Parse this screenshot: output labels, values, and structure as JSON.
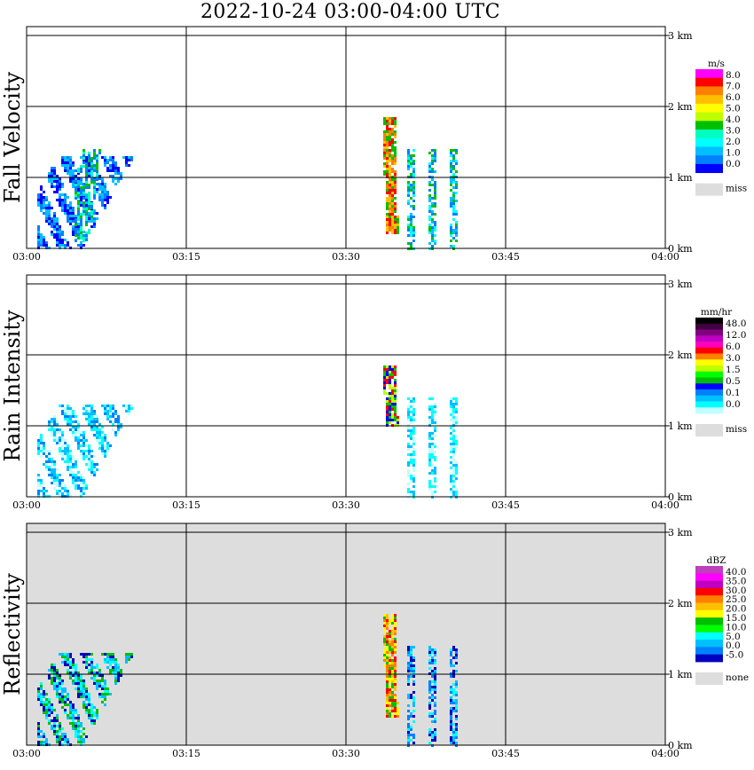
{
  "title": "2022-10-24   03:00-04:00 UTC",
  "x_ticks": [
    "03:00",
    "03:15",
    "03:30",
    "03:45",
    "04:00"
  ],
  "y_ticks": [
    "0 km",
    "1 km",
    "2 km",
    "3 km"
  ],
  "chart_data": [
    {
      "type": "heatmap",
      "ylabel": "Fall Velocity",
      "unit": "m/s",
      "xlim": [
        "03:00",
        "04:00"
      ],
      "ylim_km": [
        0,
        3.0
      ],
      "background": "#ffffff",
      "legend": {
        "colors": [
          "#ff00ff",
          "#ff0000",
          "#ff7f00",
          "#ffbf00",
          "#ffff00",
          "#bfff00",
          "#00bf00",
          "#00ffbf",
          "#00ffff",
          "#00bfff",
          "#0080ff",
          "#0000ff"
        ],
        "labels": [
          "8.0",
          "7.0",
          "6.0",
          "5.0",
          "4.0",
          "3.0",
          "2.0",
          "1.0",
          "0.0"
        ],
        "miss_label": "miss",
        "miss_color": "#dddddd"
      },
      "echoes": [
        {
          "t0": 1.0,
          "t1": 10.0,
          "h0": 0.0,
          "h1": 1.3,
          "value": "1.0-2.0"
        },
        {
          "t0": 4.5,
          "t1": 7.0,
          "h0": 0.1,
          "h1": 1.4,
          "value": "3.0-4.0"
        },
        {
          "t0": 33.5,
          "t1": 35.0,
          "h0": 0.2,
          "h1": 1.85,
          "value": "5.0-7.0"
        },
        {
          "t0": 35.5,
          "t1": 40.5,
          "h0": 0.0,
          "h1": 1.4,
          "value": "1.0-4.0"
        }
      ]
    },
    {
      "type": "heatmap",
      "ylabel": "Rain Intensity",
      "unit": "mm/hr",
      "xlim": [
        "03:00",
        "04:00"
      ],
      "ylim_km": [
        0,
        3.0
      ],
      "background": "#ffffff",
      "legend": {
        "colors": [
          "#000000",
          "#400040",
          "#800080",
          "#bf00bf",
          "#ff00bf",
          "#ff0000",
          "#ff7f00",
          "#ffff00",
          "#bfff00",
          "#00ff00",
          "#00bf00",
          "#0000ff",
          "#0080ff",
          "#00bfff",
          "#00ffff",
          "#bfffff"
        ],
        "labels": [
          "48.0",
          "12.0",
          "6.0",
          "3.0",
          "1.5",
          "0.5",
          "0.1",
          "0.0"
        ],
        "miss_label": "miss",
        "miss_color": "#dddddd"
      },
      "echoes": [
        {
          "t0": 1.0,
          "t1": 10.0,
          "h0": 0.0,
          "h1": 1.3,
          "value": "0.1-0.5"
        },
        {
          "t0": 33.5,
          "t1": 35.0,
          "h0": 1.0,
          "h1": 1.85,
          "value": "1.5-6.0"
        },
        {
          "t0": 35.5,
          "t1": 40.5,
          "h0": 0.0,
          "h1": 1.4,
          "value": "0.1"
        }
      ]
    },
    {
      "type": "heatmap",
      "ylabel": "Reflectivity",
      "unit": "dBZ",
      "xlim": [
        "03:00",
        "04:00"
      ],
      "ylim_km": [
        0,
        3.0
      ],
      "background": "#dddddd",
      "legend": {
        "colors": [
          "#bf40bf",
          "#ff00ff",
          "#bf00bf",
          "#ff0000",
          "#ff7f00",
          "#ffbf00",
          "#ffff00",
          "#00bf00",
          "#00ff00",
          "#00ffff",
          "#00bfff",
          "#0080ff",
          "#0000bf"
        ],
        "labels": [
          "40.0",
          "35.0",
          "30.0",
          "25.0",
          "20.0",
          "15.0",
          "10.0",
          "5.0",
          "0.0",
          "-5.0"
        ],
        "miss_label": "none",
        "miss_color": "#dddddd"
      },
      "echoes": [
        {
          "t0": 1.0,
          "t1": 10.0,
          "h0": 0.0,
          "h1": 1.3,
          "value": "5.0-15.0"
        },
        {
          "t0": 33.5,
          "t1": 35.0,
          "h0": 0.4,
          "h1": 1.85,
          "value": "15.0-25.0"
        },
        {
          "t0": 35.5,
          "t1": 40.5,
          "h0": 0.0,
          "h1": 1.4,
          "value": "5.0-10.0"
        }
      ]
    }
  ]
}
